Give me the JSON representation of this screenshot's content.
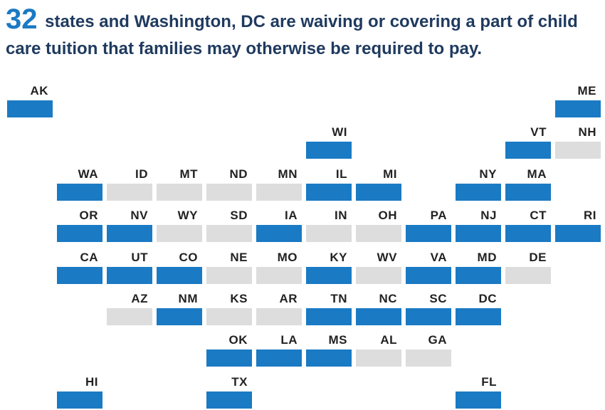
{
  "headline": {
    "count": "32",
    "text": "states and Washington, DC are waiving or covering a part of child care tuition that families may otherwise be required to pay."
  },
  "colors": {
    "covered": "#1a7ac4",
    "not_covered": "#dddddd",
    "headline_text": "#1f3a5f",
    "count_text": "#1a7ac4"
  },
  "states": [
    {
      "abbr": "AK",
      "row": 0,
      "col": 0,
      "covered": true
    },
    {
      "abbr": "ME",
      "row": 0,
      "col": 11,
      "covered": true
    },
    {
      "abbr": "WI",
      "row": 1,
      "col": 6,
      "covered": true
    },
    {
      "abbr": "VT",
      "row": 1,
      "col": 10,
      "covered": true
    },
    {
      "abbr": "NH",
      "row": 1,
      "col": 11,
      "covered": false
    },
    {
      "abbr": "WA",
      "row": 2,
      "col": 1,
      "covered": true
    },
    {
      "abbr": "ID",
      "row": 2,
      "col": 2,
      "covered": false
    },
    {
      "abbr": "MT",
      "row": 2,
      "col": 3,
      "covered": false
    },
    {
      "abbr": "ND",
      "row": 2,
      "col": 4,
      "covered": false
    },
    {
      "abbr": "MN",
      "row": 2,
      "col": 5,
      "covered": false
    },
    {
      "abbr": "IL",
      "row": 2,
      "col": 6,
      "covered": true
    },
    {
      "abbr": "MI",
      "row": 2,
      "col": 7,
      "covered": true
    },
    {
      "abbr": "NY",
      "row": 2,
      "col": 9,
      "covered": true
    },
    {
      "abbr": "MA",
      "row": 2,
      "col": 10,
      "covered": true
    },
    {
      "abbr": "OR",
      "row": 3,
      "col": 1,
      "covered": true
    },
    {
      "abbr": "NV",
      "row": 3,
      "col": 2,
      "covered": true
    },
    {
      "abbr": "WY",
      "row": 3,
      "col": 3,
      "covered": false
    },
    {
      "abbr": "SD",
      "row": 3,
      "col": 4,
      "covered": false
    },
    {
      "abbr": "IA",
      "row": 3,
      "col": 5,
      "covered": true
    },
    {
      "abbr": "IN",
      "row": 3,
      "col": 6,
      "covered": false
    },
    {
      "abbr": "OH",
      "row": 3,
      "col": 7,
      "covered": false
    },
    {
      "abbr": "PA",
      "row": 3,
      "col": 8,
      "covered": true
    },
    {
      "abbr": "NJ",
      "row": 3,
      "col": 9,
      "covered": true
    },
    {
      "abbr": "CT",
      "row": 3,
      "col": 10,
      "covered": true
    },
    {
      "abbr": "RI",
      "row": 3,
      "col": 11,
      "covered": true
    },
    {
      "abbr": "CA",
      "row": 4,
      "col": 1,
      "covered": true
    },
    {
      "abbr": "UT",
      "row": 4,
      "col": 2,
      "covered": true
    },
    {
      "abbr": "CO",
      "row": 4,
      "col": 3,
      "covered": true
    },
    {
      "abbr": "NE",
      "row": 4,
      "col": 4,
      "covered": false
    },
    {
      "abbr": "MO",
      "row": 4,
      "col": 5,
      "covered": false
    },
    {
      "abbr": "KY",
      "row": 4,
      "col": 6,
      "covered": true
    },
    {
      "abbr": "WV",
      "row": 4,
      "col": 7,
      "covered": false
    },
    {
      "abbr": "VA",
      "row": 4,
      "col": 8,
      "covered": true
    },
    {
      "abbr": "MD",
      "row": 4,
      "col": 9,
      "covered": true
    },
    {
      "abbr": "DE",
      "row": 4,
      "col": 10,
      "covered": false
    },
    {
      "abbr": "AZ",
      "row": 5,
      "col": 2,
      "covered": false
    },
    {
      "abbr": "NM",
      "row": 5,
      "col": 3,
      "covered": true
    },
    {
      "abbr": "KS",
      "row": 5,
      "col": 4,
      "covered": false
    },
    {
      "abbr": "AR",
      "row": 5,
      "col": 5,
      "covered": false
    },
    {
      "abbr": "TN",
      "row": 5,
      "col": 6,
      "covered": true
    },
    {
      "abbr": "NC",
      "row": 5,
      "col": 7,
      "covered": true
    },
    {
      "abbr": "SC",
      "row": 5,
      "col": 8,
      "covered": true
    },
    {
      "abbr": "DC",
      "row": 5,
      "col": 9,
      "covered": true
    },
    {
      "abbr": "OK",
      "row": 6,
      "col": 4,
      "covered": true
    },
    {
      "abbr": "LA",
      "row": 6,
      "col": 5,
      "covered": true
    },
    {
      "abbr": "MS",
      "row": 6,
      "col": 6,
      "covered": true
    },
    {
      "abbr": "AL",
      "row": 6,
      "col": 7,
      "covered": false
    },
    {
      "abbr": "GA",
      "row": 6,
      "col": 8,
      "covered": false
    },
    {
      "abbr": "HI",
      "row": 7,
      "col": 1,
      "covered": true
    },
    {
      "abbr": "TX",
      "row": 7,
      "col": 4,
      "covered": true
    },
    {
      "abbr": "FL",
      "row": 7,
      "col": 9,
      "covered": true
    }
  ]
}
